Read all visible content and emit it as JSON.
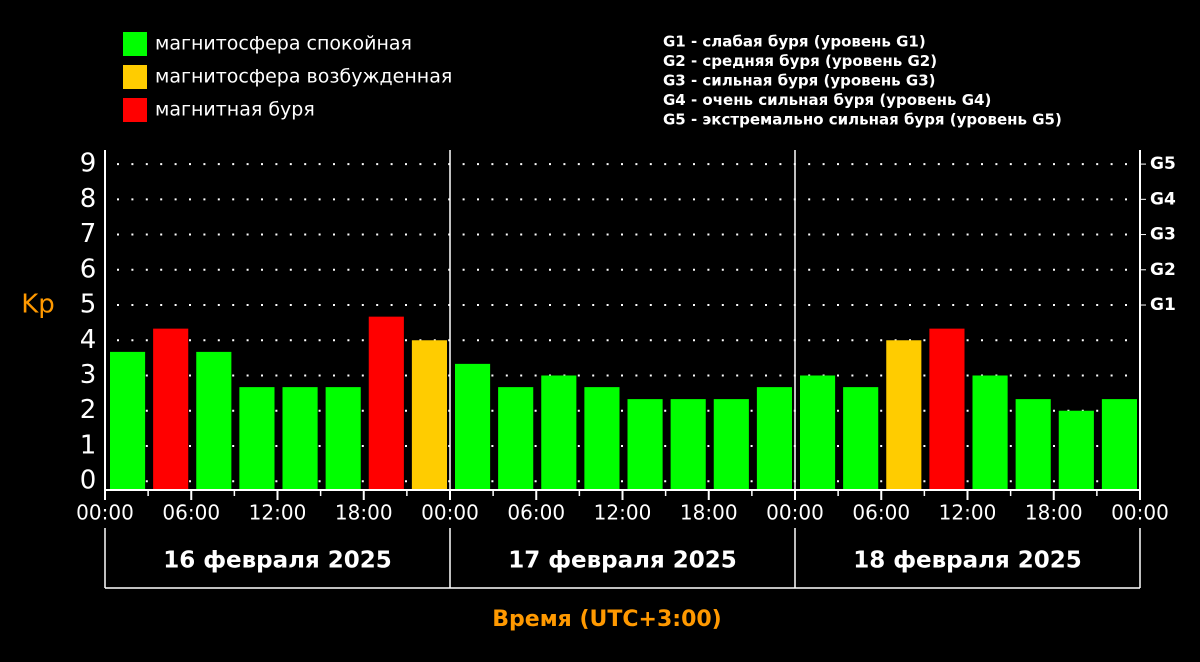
{
  "chart_data": {
    "type": "bar",
    "y_label": "Kp",
    "x_label": "Время (UTC+3:00)",
    "legend": [
      {
        "label": "магнитосфера спокойная",
        "color": "#00ff00"
      },
      {
        "label": "магнитосфера возбужденная",
        "color": "#ffcc00"
      },
      {
        "label": "магнитная буря",
        "color": "#ff0000"
      }
    ],
    "g_notes": [
      "G1 - слабая буря (уровень G1)",
      "G2 - средняя буря (уровень G2)",
      "G3 - сильная буря (уровень G3)",
      "G4 - очень сильная буря (уровень G4)",
      "G5 - экстремально сильная буря (уровень G5)"
    ],
    "day_labels": [
      "16 февраля 2025",
      "17 февраля 2025",
      "18 февраля 2025"
    ],
    "x": [
      0,
      3,
      6,
      9,
      12,
      15,
      18,
      21,
      24,
      27,
      30,
      33,
      36,
      39,
      42,
      45,
      48,
      51,
      54,
      57,
      60,
      63,
      66,
      69
    ],
    "values": [
      3.67,
      4.33,
      3.67,
      2.67,
      2.67,
      2.67,
      4.67,
      4.0,
      3.33,
      2.67,
      3.0,
      2.67,
      2.33,
      2.33,
      2.33,
      2.67,
      3.0,
      2.67,
      4.0,
      4.33,
      3.0,
      2.33,
      2.0,
      2.33
    ],
    "colors": [
      "#00ff00",
      "#ff0000",
      "#00ff00",
      "#00ff00",
      "#00ff00",
      "#00ff00",
      "#ff0000",
      "#ffcc00",
      "#00ff00",
      "#00ff00",
      "#00ff00",
      "#00ff00",
      "#00ff00",
      "#00ff00",
      "#00ff00",
      "#00ff00",
      "#00ff00",
      "#00ff00",
      "#ffcc00",
      "#ff0000",
      "#00ff00",
      "#00ff00",
      "#00ff00",
      "#00ff00"
    ],
    "xlim": [
      0,
      72
    ],
    "xticks": [
      {
        "value": 0,
        "label": "00:00"
      },
      {
        "value": 6,
        "label": "06:00"
      },
      {
        "value": 12,
        "label": "12:00"
      },
      {
        "value": 18,
        "label": "18:00"
      },
      {
        "value": 24,
        "label": "00:00"
      },
      {
        "value": 30,
        "label": "06:00"
      },
      {
        "value": 36,
        "label": "12:00"
      },
      {
        "value": 42,
        "label": "18:00"
      },
      {
        "value": 48,
        "label": "00:00"
      },
      {
        "value": 54,
        "label": "06:00"
      },
      {
        "value": 60,
        "label": "12:00"
      },
      {
        "value": 66,
        "label": "18:00"
      },
      {
        "value": 72,
        "label": "00:00"
      }
    ],
    "day_dividers": [
      24,
      48
    ],
    "ylim": [
      -0.25,
      9.4
    ],
    "yticks": [
      0,
      1,
      2,
      3,
      4,
      5,
      6,
      7,
      8,
      9
    ],
    "y2lim": [
      -0.25,
      9.4
    ],
    "y2ticks": [
      {
        "value": 5,
        "label": "G1"
      },
      {
        "value": 6,
        "label": "G2"
      },
      {
        "value": 7,
        "label": "G3"
      },
      {
        "value": 8,
        "label": "G4"
      },
      {
        "value": 9,
        "label": "G5"
      }
    ],
    "grid": true
  }
}
